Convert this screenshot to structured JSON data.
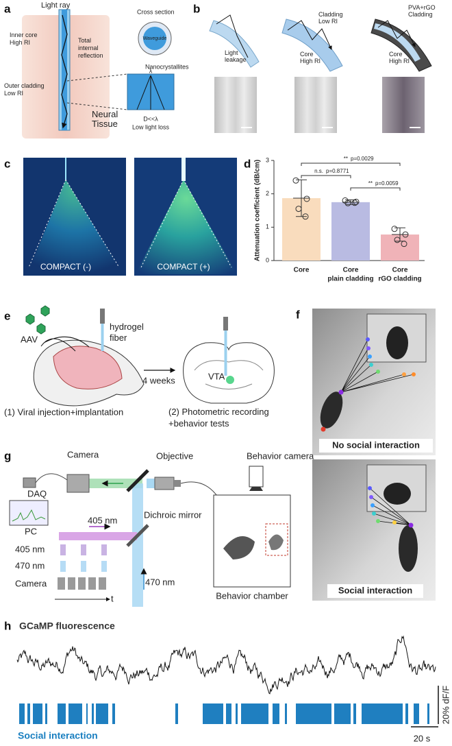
{
  "panel_a": {
    "label": "a",
    "light_ray": "Light ray",
    "cross_section": "Cross section",
    "waveguide": "Waveguide",
    "inner_core": [
      "Inner core",
      "High RI"
    ],
    "tir": [
      "Total",
      "internal",
      "reflection"
    ],
    "outer_cladding": [
      "Outer cladding",
      "Low RI"
    ],
    "nanocrystallites": "Nanocrystallites",
    "lambda": "λ",
    "d_lambda": "D<<λ",
    "low_loss": "Low light loss",
    "neural_tissue": [
      "Neural",
      "Tissue"
    ]
  },
  "panel_b": {
    "label": "b",
    "light_leakage": [
      "Light",
      "leakage"
    ],
    "cladding": [
      "Cladding",
      "Low RI"
    ],
    "core1": [
      "Core",
      "High RI"
    ],
    "pva": [
      "PVA+rGO",
      "Cladding"
    ],
    "core2": [
      "Core",
      "High RI"
    ]
  },
  "panel_c": {
    "label": "c",
    "left": "COMPACT (-)",
    "right": "COMPACT (+)"
  },
  "chart_data": {
    "type": "bar",
    "label": "d",
    "ylabel": "Attenuation coefficient (dB/cm)",
    "categories": [
      [
        "Core"
      ],
      [
        "Core",
        "plain cladding"
      ],
      [
        "Core",
        "rGO cladding"
      ]
    ],
    "values": [
      1.87,
      1.75,
      0.78
    ],
    "errors": [
      0.55,
      0.07,
      0.2
    ],
    "points": [
      [
        2.4,
        1.85,
        1.55,
        1.32
      ],
      [
        1.8,
        1.76,
        1.72,
        1.73
      ],
      [
        0.95,
        0.78,
        0.62,
        0.5
      ]
    ],
    "colors": [
      "#f9dcbd",
      "#b9bbe2",
      "#f0b3b8"
    ],
    "ylim": [
      0,
      3
    ],
    "yticks": [
      0,
      1,
      2,
      3
    ],
    "annotations": [
      {
        "stars": "**",
        "p": "p=0.0029"
      },
      {
        "stars": "n.s.",
        "p": "p=0.8771"
      },
      {
        "stars": "**",
        "p": "p=0.0059"
      }
    ]
  },
  "panel_e": {
    "label": "e",
    "aav": "AAV",
    "fiber": [
      "hydrogel",
      "fiber"
    ],
    "weeks": "4 weeks",
    "vta": "VTA",
    "step1": "(1) Viral injection+implantation",
    "step2": [
      "(2) Photometric recording",
      "+behavior tests"
    ]
  },
  "panel_f": {
    "label": "f",
    "top": "No social interaction",
    "bottom": "Social interaction"
  },
  "panel_g": {
    "label": "g",
    "camera": "Camera",
    "objective": "Objective",
    "behavior_camera": "Behavior camera",
    "daq": "DAQ",
    "pc": "PC",
    "dichroic": "Dichroic mirror",
    "nm405": "405 nm",
    "row405": "405 nm",
    "row470": "470 nm",
    "rowcam": "Camera",
    "t": "t",
    "nm470": "470 nm",
    "chamber": "Behavior chamber"
  },
  "panel_h": {
    "label": "h",
    "title": "GCaMP fluorescence",
    "legend": "Social interaction",
    "scale_y": "20% dF/F",
    "scale_x": "20 s"
  }
}
